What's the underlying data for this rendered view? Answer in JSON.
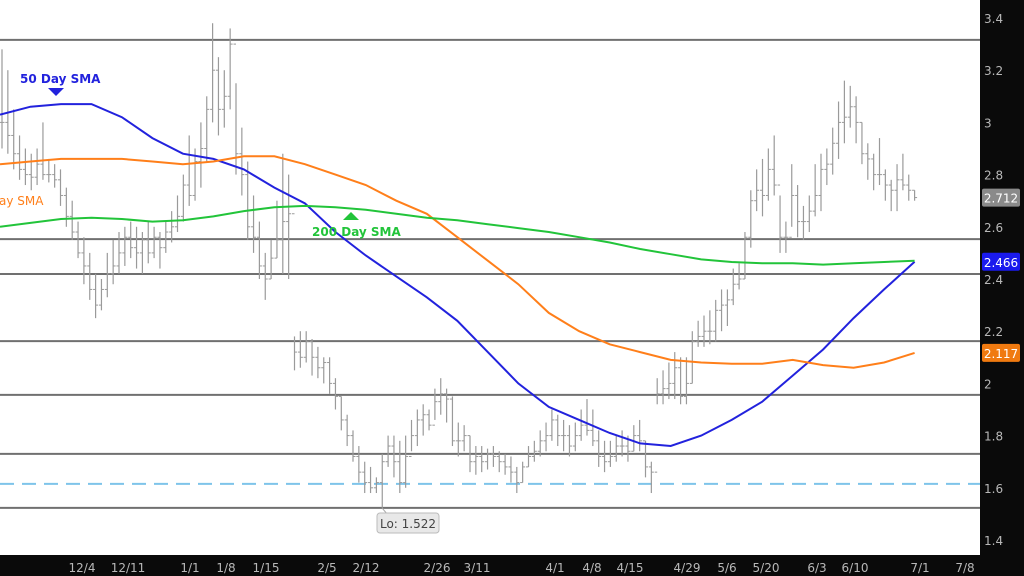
{
  "chart_data": {
    "type": "ohlc",
    "title": "",
    "xlabel": "",
    "ylabel": "",
    "ylim": [
      1.4,
      3.4
    ],
    "grid": false,
    "y_ticks": [
      "3.4",
      "3.2",
      "3",
      "2.8",
      "2.6",
      "2.4",
      "2.2",
      "2",
      "1.8",
      "1.6",
      "1.4"
    ],
    "x_ticks": [
      "12/4",
      "12/11",
      "1/1",
      "1/8",
      "1/15",
      "2/5",
      "2/12",
      "2/26",
      "3/11",
      "4/1",
      "4/8",
      "4/15",
      "4/29",
      "5/6",
      "5/20",
      "6/3",
      "6/10",
      "7/1",
      "7/8"
    ],
    "bars_hlc": [
      [
        3.28,
        2.9,
        3.0
      ],
      [
        3.2,
        2.88,
        2.95
      ],
      [
        3.05,
        2.82,
        2.88
      ],
      [
        2.95,
        2.78,
        2.82
      ],
      [
        2.9,
        2.76,
        2.8
      ],
      [
        2.88,
        2.74,
        2.79
      ],
      [
        2.9,
        2.76,
        2.84
      ],
      [
        3.0,
        2.78,
        2.8
      ],
      [
        2.86,
        2.77,
        2.8
      ],
      [
        2.84,
        2.75,
        2.78
      ],
      [
        2.82,
        2.68,
        2.72
      ],
      [
        2.75,
        2.6,
        2.64
      ],
      [
        2.7,
        2.55,
        2.58
      ],
      [
        2.62,
        2.48,
        2.5
      ],
      [
        2.56,
        2.38,
        2.45
      ],
      [
        2.5,
        2.32,
        2.36
      ],
      [
        2.42,
        2.25,
        2.3
      ],
      [
        2.4,
        2.28,
        2.36
      ],
      [
        2.5,
        2.33,
        2.42
      ],
      [
        2.55,
        2.38,
        2.45
      ],
      [
        2.58,
        2.42,
        2.5
      ],
      [
        2.6,
        2.45,
        2.56
      ],
      [
        2.62,
        2.48,
        2.52
      ],
      [
        2.6,
        2.44,
        2.5
      ],
      [
        2.58,
        2.42,
        2.55
      ],
      [
        2.62,
        2.46,
        2.5
      ],
      [
        2.6,
        2.48,
        2.56
      ],
      [
        2.58,
        2.44,
        2.52
      ],
      [
        2.62,
        2.5,
        2.58
      ],
      [
        2.66,
        2.54,
        2.6
      ],
      [
        2.72,
        2.58,
        2.64
      ],
      [
        2.8,
        2.62,
        2.76
      ],
      [
        2.95,
        2.68,
        2.72
      ],
      [
        2.9,
        2.7,
        2.85
      ],
      [
        3.0,
        2.75,
        2.9
      ],
      [
        3.1,
        2.85,
        3.05
      ],
      [
        3.38,
        3.0,
        3.2
      ],
      [
        3.25,
        2.95,
        3.05
      ],
      [
        3.2,
        2.98,
        3.1
      ],
      [
        3.36,
        3.05,
        3.3
      ],
      [
        3.15,
        2.8,
        2.88
      ],
      [
        2.98,
        2.72,
        2.8
      ],
      [
        2.85,
        2.55,
        2.6
      ],
      [
        2.72,
        2.5,
        2.56
      ],
      [
        2.62,
        2.4,
        2.45
      ],
      [
        2.5,
        2.32,
        2.4
      ],
      [
        2.55,
        2.4,
        2.48
      ],
      [
        2.7,
        2.48,
        2.55
      ],
      [
        2.88,
        2.42,
        2.62
      ],
      [
        2.8,
        2.4,
        2.65
      ],
      [
        2.18,
        2.05,
        2.12
      ],
      [
        2.2,
        2.06,
        2.1
      ],
      [
        2.2,
        2.08,
        2.16
      ],
      [
        2.17,
        2.03,
        2.1
      ],
      [
        2.14,
        2.02,
        2.06
      ],
      [
        2.1,
        2.0,
        2.08
      ],
      [
        2.1,
        1.96,
        2.0
      ],
      [
        2.02,
        1.9,
        1.95
      ],
      [
        1.95,
        1.82,
        1.86
      ],
      [
        1.88,
        1.76,
        1.8
      ],
      [
        1.82,
        1.7,
        1.72
      ],
      [
        1.76,
        1.62,
        1.66
      ],
      [
        1.7,
        1.58,
        1.62
      ],
      [
        1.68,
        1.58,
        1.6
      ],
      [
        1.64,
        1.58,
        1.62
      ],
      [
        1.73,
        1.522,
        1.7
      ],
      [
        1.8,
        1.68,
        1.76
      ],
      [
        1.8,
        1.64,
        1.7
      ],
      [
        1.78,
        1.58,
        1.62
      ],
      [
        1.8,
        1.6,
        1.72
      ],
      [
        1.86,
        1.74,
        1.8
      ],
      [
        1.9,
        1.76,
        1.86
      ],
      [
        1.92,
        1.8,
        1.88
      ],
      [
        1.9,
        1.82,
        1.84
      ],
      [
        1.98,
        1.86,
        1.93
      ],
      [
        2.02,
        1.88,
        1.96
      ],
      [
        1.98,
        1.85,
        1.94
      ],
      [
        1.95,
        1.76,
        1.78
      ],
      [
        1.85,
        1.72,
        1.78
      ],
      [
        1.84,
        1.74,
        1.8
      ],
      [
        1.8,
        1.66,
        1.7
      ],
      [
        1.76,
        1.65,
        1.72
      ],
      [
        1.76,
        1.66,
        1.7
      ],
      [
        1.75,
        1.67,
        1.73
      ],
      [
        1.76,
        1.68,
        1.72
      ],
      [
        1.74,
        1.66,
        1.7
      ],
      [
        1.73,
        1.65,
        1.68
      ],
      [
        1.72,
        1.62,
        1.66
      ],
      [
        1.68,
        1.58,
        1.62
      ],
      [
        1.7,
        1.62,
        1.68
      ],
      [
        1.76,
        1.68,
        1.72
      ],
      [
        1.78,
        1.7,
        1.74
      ],
      [
        1.82,
        1.72,
        1.78
      ],
      [
        1.85,
        1.74,
        1.8
      ],
      [
        1.9,
        1.78,
        1.86
      ],
      [
        1.88,
        1.76,
        1.8
      ],
      [
        1.86,
        1.74,
        1.8
      ],
      [
        1.84,
        1.72,
        1.76
      ],
      [
        1.85,
        1.74,
        1.8
      ],
      [
        1.9,
        1.78,
        1.84
      ],
      [
        1.94,
        1.8,
        1.82
      ],
      [
        1.9,
        1.76,
        1.78
      ],
      [
        1.82,
        1.68,
        1.72
      ],
      [
        1.78,
        1.66,
        1.7
      ],
      [
        1.78,
        1.68,
        1.72
      ],
      [
        1.8,
        1.7,
        1.76
      ],
      [
        1.82,
        1.72,
        1.76
      ],
      [
        1.8,
        1.7,
        1.74
      ],
      [
        1.84,
        1.74,
        1.8
      ],
      [
        1.86,
        1.74,
        1.78
      ],
      [
        1.78,
        1.64,
        1.68
      ],
      [
        1.7,
        1.58,
        1.66
      ],
      [
        2.02,
        1.92,
        1.96
      ],
      [
        2.05,
        1.92,
        1.98
      ],
      [
        2.08,
        1.94,
        2.0
      ],
      [
        2.12,
        1.94,
        2.06
      ],
      [
        2.1,
        1.92,
        1.95
      ],
      [
        2.1,
        1.92,
        2.0
      ],
      [
        2.2,
        2.0,
        2.16
      ],
      [
        2.24,
        2.14,
        2.18
      ],
      [
        2.26,
        2.14,
        2.2
      ],
      [
        2.28,
        2.15,
        2.2
      ],
      [
        2.32,
        2.16,
        2.28
      ],
      [
        2.36,
        2.2,
        2.3
      ],
      [
        2.36,
        2.22,
        2.32
      ],
      [
        2.44,
        2.3,
        2.38
      ],
      [
        2.46,
        2.36,
        2.4
      ],
      [
        2.58,
        2.4,
        2.56
      ],
      [
        2.74,
        2.52,
        2.7
      ],
      [
        2.82,
        2.66,
        2.74
      ],
      [
        2.86,
        2.64,
        2.72
      ],
      [
        2.9,
        2.7,
        2.82
      ],
      [
        2.95,
        2.72,
        2.76
      ],
      [
        2.72,
        2.5,
        2.56
      ],
      [
        2.62,
        2.5,
        2.56
      ],
      [
        2.84,
        2.6,
        2.72
      ],
      [
        2.76,
        2.56,
        2.62
      ],
      [
        2.68,
        2.55,
        2.62
      ],
      [
        2.72,
        2.58,
        2.66
      ],
      [
        2.84,
        2.64,
        2.72
      ],
      [
        2.88,
        2.66,
        2.82
      ],
      [
        2.9,
        2.76,
        2.84
      ],
      [
        2.98,
        2.8,
        2.92
      ],
      [
        3.08,
        2.86,
        3.0
      ],
      [
        3.16,
        2.92,
        3.02
      ],
      [
        3.14,
        2.98,
        3.06
      ],
      [
        3.1,
        2.92,
        3.0
      ],
      [
        3.0,
        2.84,
        2.88
      ],
      [
        2.92,
        2.78,
        2.86
      ],
      [
        2.88,
        2.74,
        2.8
      ],
      [
        2.94,
        2.76,
        2.8
      ],
      [
        2.82,
        2.7,
        2.76
      ],
      [
        2.78,
        2.66,
        2.74
      ],
      [
        2.84,
        2.66,
        2.78
      ],
      [
        2.88,
        2.74,
        2.76
      ],
      [
        2.8,
        2.7,
        2.74
      ],
      [
        2.74,
        2.7,
        2.712
      ]
    ],
    "series": [
      {
        "name": "50 Day SMA",
        "color": "#2222dd",
        "values": [
          3.03,
          3.06,
          3.07,
          3.07,
          3.02,
          2.94,
          2.88,
          2.86,
          2.82,
          2.75,
          2.69,
          2.58,
          2.49,
          2.41,
          2.33,
          2.24,
          2.12,
          2.0,
          1.91,
          1.86,
          1.81,
          1.77,
          1.76,
          1.8,
          1.86,
          1.93,
          2.03,
          2.13,
          2.25,
          2.36,
          2.466
        ]
      },
      {
        "name": "ay SMA",
        "color": "#ff7f1a",
        "values": [
          2.84,
          2.85,
          2.86,
          2.86,
          2.86,
          2.85,
          2.84,
          2.85,
          2.87,
          2.87,
          2.84,
          2.8,
          2.76,
          2.7,
          2.65,
          2.56,
          2.47,
          2.38,
          2.27,
          2.2,
          2.15,
          2.12,
          2.09,
          2.08,
          2.075,
          2.075,
          2.09,
          2.07,
          2.06,
          2.08,
          2.117
        ]
      },
      {
        "name": "200 Day SMA",
        "color": "#22c43a",
        "values": [
          2.6,
          2.615,
          2.63,
          2.635,
          2.63,
          2.62,
          2.625,
          2.64,
          2.66,
          2.675,
          2.68,
          2.675,
          2.665,
          2.65,
          2.635,
          2.625,
          2.61,
          2.595,
          2.58,
          2.56,
          2.54,
          2.515,
          2.495,
          2.475,
          2.465,
          2.46,
          2.46,
          2.455,
          2.46,
          2.465,
          2.47
        ]
      }
    ],
    "horizontal_levels": [
      3.316,
      2.553,
      2.419,
      2.162,
      1.956,
      1.73,
      1.523
    ],
    "dashed_level": 1.615,
    "price_tags": [
      {
        "label": "2.712",
        "value": 2.712,
        "color": "#8a8a8a"
      },
      {
        "label": "2.466",
        "value": 2.466,
        "color": "#1a1aee"
      },
      {
        "label": "2.117",
        "value": 2.117,
        "color": "#f07a10"
      }
    ],
    "annotations": {
      "low_label": "Lo: 1.522",
      "low_value": 1.522
    },
    "colors": {
      "bars": "#9a9a9a",
      "levels": "#707070",
      "dashed": "#7ec4ea",
      "background": "#ffffff",
      "axis_bg": "#0a0a0a"
    }
  }
}
